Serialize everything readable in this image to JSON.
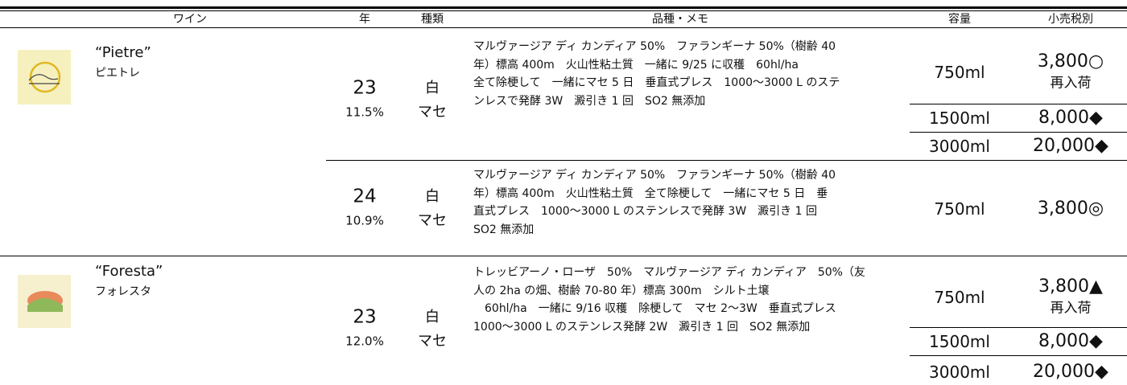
{
  "table": {
    "headers": [
      "ワイン",
      "年",
      "種類",
      "品種・メモ",
      "容量",
      "小売税別"
    ],
    "wines": [
      {
        "name": "“Pietre”",
        "kana": "ピエトレ",
        "vintages": [
          {
            "year": "23",
            "abv": "11.5%",
            "color": "白",
            "style": "マセ",
            "memo": [
              "マルヴァージア ディ カンディア 50%　ファランギーナ 50%（樹齢 40",
              "年）標高 400m　火山性粘土質　一緒に 9/25 に収穫　60hl/ha",
              "全て除梗して　一緒にマセ 5 日　垂直式プレス　1000～3000 L のステ",
              "ンレスで発酵 3W　澱引き 1 回　SO2 無添加"
            ],
            "sizes": [
              {
                "volume": "750ml",
                "price": "3,800○",
                "note": "再入荷"
              },
              {
                "volume": "1500ml",
                "price": "8,000◆"
              },
              {
                "volume": "3000ml",
                "price": "20,000◆"
              }
            ]
          },
          {
            "year": "24",
            "abv": "10.9%",
            "color": "白",
            "style": "マセ",
            "memo": [
              "マルヴァージア ディ カンディア 50%　ファランギーナ 50%（樹齢 40",
              "年）標高 400m　火山性粘土質　全て除梗して　一緒にマセ 5 日　垂",
              "直式プレス　1000～3000 L のステンレスで発酵 3W　澱引き 1 回",
              "SO2 無添加"
            ],
            "sizes": [
              {
                "volume": "750ml",
                "price": "3,800◎"
              }
            ]
          }
        ]
      },
      {
        "name": "“Foresta”",
        "kana": "フォレスタ",
        "vintages": [
          {
            "year": "23",
            "abv": "12.0%",
            "color": "白",
            "style": "マセ",
            "memo": [
              "トレッビアーノ・ローザ　50%　マルヴァージア ディ カンディア　50%（友",
              "人の 2ha の畑、樹齢 70-80 年）標高 300m　シルト土壌",
              "　60hl/ha　一緒に 9/16 収穫　除梗して　マセ 2～3W　垂直式プレス",
              "1000～3000 L のステンレス発酵 2W　澱引き 1 回　SO2 無添加"
            ],
            "sizes": [
              {
                "volume": "750ml",
                "price": "3,800▲",
                "note": "再入荷"
              },
              {
                "volume": "1500ml",
                "price": "8,000◆"
              },
              {
                "volume": "3000ml",
                "price": "20,000◆"
              }
            ]
          }
        ]
      }
    ]
  }
}
